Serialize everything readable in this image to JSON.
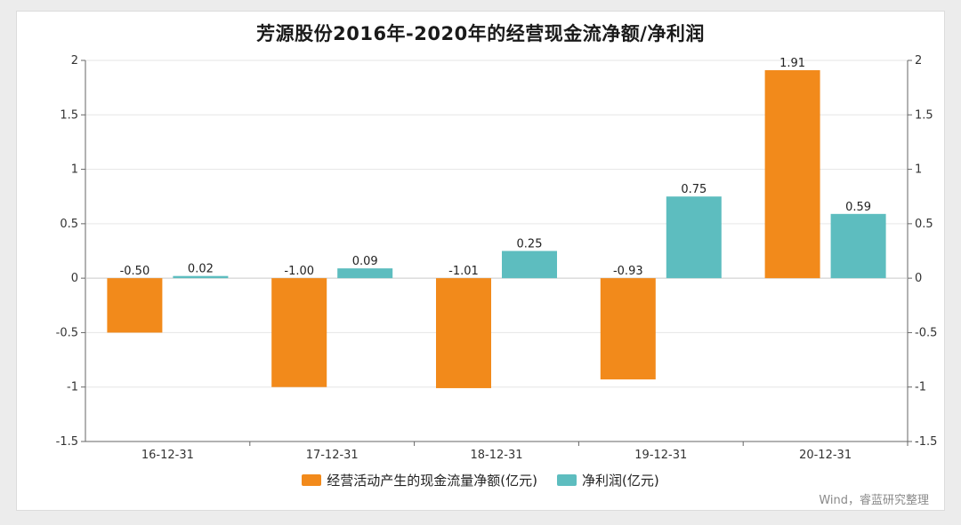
{
  "chart_data": {
    "type": "bar",
    "title": "芳源股份2016年-2020年的经营现金流净额/净利润",
    "categories": [
      "16-12-31",
      "17-12-31",
      "18-12-31",
      "19-12-31",
      "20-12-31"
    ],
    "series": [
      {
        "name": "经营活动产生的现金流量净额(亿元)",
        "values": [
          -0.5,
          -1.0,
          -1.01,
          -0.93,
          1.91
        ],
        "labels": [
          "-0.50",
          "-1.00",
          "-1.01",
          "-0.93",
          "1.91"
        ],
        "color": "#f28a1b"
      },
      {
        "name": "净利润(亿元)",
        "values": [
          0.02,
          0.09,
          0.25,
          0.75,
          0.59
        ],
        "labels": [
          "0.02",
          "0.09",
          "0.25",
          "0.75",
          "0.59"
        ],
        "color": "#5dbdbf"
      }
    ],
    "ylim": [
      -1.5,
      2
    ],
    "yticks": [
      {
        "value": 2,
        "label": "2"
      },
      {
        "value": 1.5,
        "label": "1.5"
      },
      {
        "value": 1,
        "label": "1"
      },
      {
        "value": 0.5,
        "label": "0.5"
      },
      {
        "value": 0,
        "label": "0"
      },
      {
        "value": -0.5,
        "label": "-0.5"
      },
      {
        "value": -1,
        "label": "-1"
      },
      {
        "value": -1.5,
        "label": "-1.5"
      }
    ],
    "grid": true,
    "legend_position": "bottom",
    "source": "Wind，睿蓝研究整理"
  }
}
